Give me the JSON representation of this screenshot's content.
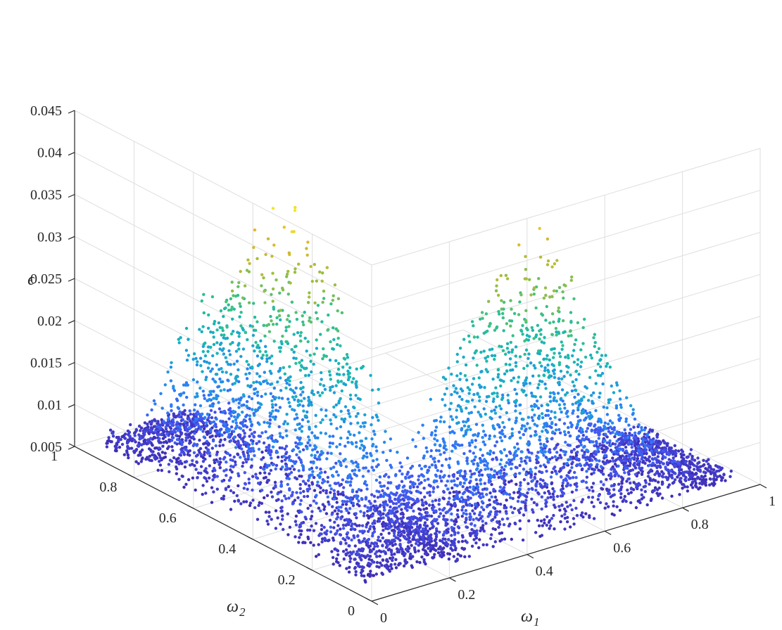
{
  "chart_data": {
    "type": "scatter",
    "view": "3d",
    "title": "",
    "xlabel": "ω",
    "xlabel_sub": "1",
    "ylabel": "ω",
    "ylabel_sub": "2",
    "zlabel": "ϵ",
    "xlim": [
      0,
      1
    ],
    "ylim": [
      0,
      1
    ],
    "zlim": [
      0.005,
      0.045
    ],
    "x_ticks": [
      "0",
      "0.2",
      "0.4",
      "0.6",
      "0.8",
      "1"
    ],
    "y_ticks": [
      "0",
      "0.2",
      "0.4",
      "0.6",
      "0.8",
      "1"
    ],
    "z_ticks": [
      "0.005",
      "0.01",
      "0.015",
      "0.02",
      "0.025",
      "0.03",
      "0.035",
      "0.04",
      "0.045"
    ],
    "grid": true,
    "colormap": "parula",
    "colormap_stops": [
      "#3e26a8",
      "#4554f0",
      "#2b7ff8",
      "#1ca0d9",
      "#16b8b2",
      "#3ec280",
      "#a3bd3c",
      "#e6b82a",
      "#f9f925"
    ],
    "point_color": "#4a55d8",
    "clusters": [
      {
        "name": "",
        "description": "peaked cloud",
        "omega1_range": [
          0.0,
          0.25
        ],
        "omega2_range": [
          0.05,
          0.95
        ],
        "epsilon_range": [
          0.006,
          0.043
        ]
      },
      {
        "name": "",
        "description": "peaked cloud",
        "omega1_range": [
          0.2,
          0.95
        ],
        "omega2_range": [
          0.0,
          0.3
        ],
        "epsilon_range": [
          0.006,
          0.04
        ]
      }
    ]
  }
}
